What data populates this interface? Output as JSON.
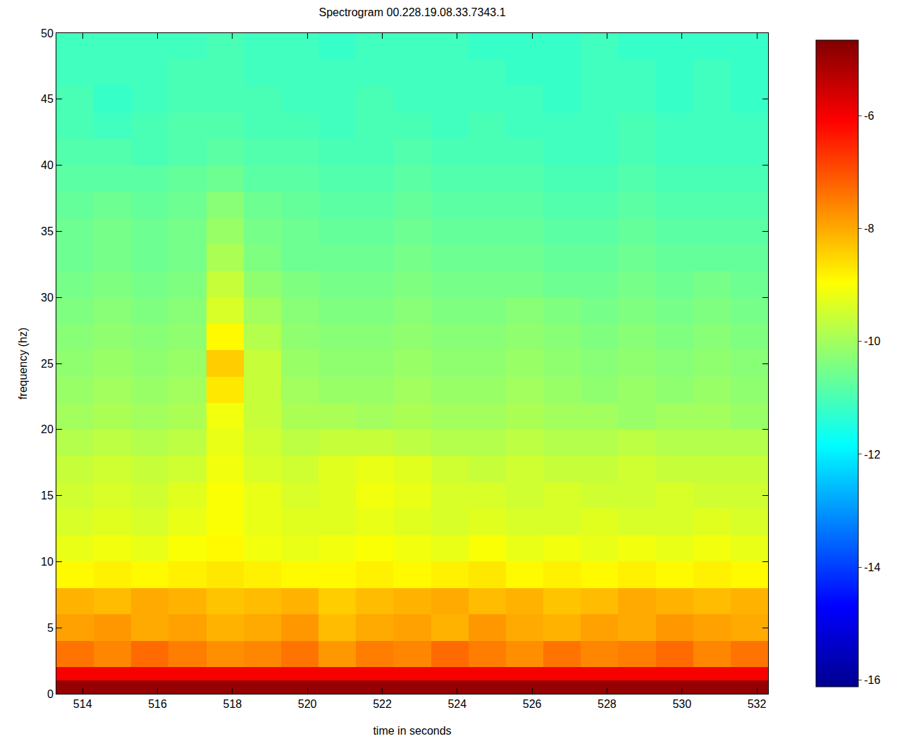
{
  "chart_data": {
    "type": "heatmap",
    "title": "Spectrogram 00.228.19.08.33.7343.1",
    "x_label": "time in seconds",
    "y_label": "frequency (hz)",
    "x_edges": [
      513.3,
      514.3,
      515.3,
      516.3,
      517.3,
      518.3,
      519.3,
      520.3,
      521.3,
      522.3,
      523.3,
      524.3,
      525.3,
      526.3,
      527.3,
      528.3,
      529.3,
      530.3,
      531.3,
      532.3
    ],
    "y_edges": [
      0,
      1,
      2,
      4,
      6,
      8,
      10,
      12,
      14,
      16,
      18,
      20,
      22,
      24,
      26,
      28,
      30,
      32,
      34,
      36,
      38,
      40,
      42,
      44,
      46,
      48,
      50
    ],
    "z": [
      [
        -4.9,
        -4.9,
        -4.9,
        -4.9,
        -4.9,
        -4.9,
        -4.9,
        -4.9,
        -4.9,
        -4.9,
        -4.9,
        -4.9,
        -4.9,
        -4.9,
        -4.9,
        -4.9,
        -4.9,
        -4.9,
        -4.9
      ],
      [
        -6.0,
        -6.0,
        -6.0,
        -6.0,
        -6.0,
        -6.0,
        -6.0,
        -6.0,
        -6.0,
        -6.0,
        -6.0,
        -6.0,
        -6.0,
        -6.0,
        -6.0,
        -6.0,
        -6.0,
        -6.0,
        -6.0
      ],
      [
        -7.4,
        -7.6,
        -7.3,
        -7.5,
        -7.7,
        -7.6,
        -7.4,
        -7.8,
        -7.5,
        -7.6,
        -7.3,
        -7.5,
        -7.7,
        -7.4,
        -7.6,
        -7.5,
        -7.3,
        -7.6,
        -7.4
      ],
      [
        -7.9,
        -7.8,
        -8.0,
        -7.9,
        -8.1,
        -8.0,
        -7.8,
        -8.2,
        -8.0,
        -7.9,
        -8.1,
        -7.8,
        -8.0,
        -8.1,
        -7.9,
        -8.0,
        -7.8,
        -7.9,
        -8.0
      ],
      [
        -8.1,
        -8.2,
        -8.0,
        -8.1,
        -8.3,
        -8.2,
        -8.1,
        -8.4,
        -8.2,
        -8.1,
        -8.0,
        -8.2,
        -8.1,
        -8.3,
        -8.2,
        -8.0,
        -8.1,
        -8.2,
        -8.1
      ],
      [
        -8.9,
        -8.8,
        -8.9,
        -8.8,
        -8.7,
        -8.8,
        -8.9,
        -8.9,
        -8.8,
        -8.9,
        -8.8,
        -8.7,
        -8.9,
        -8.8,
        -8.9,
        -8.8,
        -8.9,
        -8.8,
        -8.9
      ],
      [
        -9.2,
        -9.1,
        -9.2,
        -9.0,
        -8.9,
        -9.1,
        -9.2,
        -9.1,
        -9.0,
        -9.1,
        -9.2,
        -9.0,
        -9.2,
        -9.1,
        -9.2,
        -9.1,
        -9.2,
        -9.1,
        -9.2
      ],
      [
        -9.4,
        -9.3,
        -9.4,
        -9.2,
        -9.0,
        -9.2,
        -9.3,
        -9.3,
        -9.2,
        -9.3,
        -9.4,
        -9.3,
        -9.4,
        -9.4,
        -9.3,
        -9.4,
        -9.4,
        -9.3,
        -9.4
      ],
      [
        -9.5,
        -9.4,
        -9.5,
        -9.3,
        -9.0,
        -9.2,
        -9.4,
        -9.3,
        -9.1,
        -9.2,
        -9.4,
        -9.4,
        -9.5,
        -9.4,
        -9.5,
        -9.5,
        -9.4,
        -9.5,
        -9.5
      ],
      [
        -9.6,
        -9.5,
        -9.6,
        -9.5,
        -9.1,
        -9.4,
        -9.5,
        -9.3,
        -9.2,
        -9.3,
        -9.5,
        -9.6,
        -9.5,
        -9.6,
        -9.6,
        -9.5,
        -9.6,
        -9.6,
        -9.6
      ],
      [
        -9.8,
        -9.7,
        -9.8,
        -9.7,
        -9.2,
        -9.5,
        -9.7,
        -9.6,
        -9.6,
        -9.7,
        -9.8,
        -9.8,
        -9.7,
        -9.8,
        -9.8,
        -9.7,
        -9.8,
        -9.8,
        -9.8
      ],
      [
        -10.0,
        -9.9,
        -10.0,
        -9.9,
        -9.1,
        -9.6,
        -9.9,
        -9.9,
        -10.0,
        -9.9,
        -10.0,
        -10.0,
        -9.9,
        -10.0,
        -10.0,
        -10.1,
        -10.0,
        -10.0,
        -10.1
      ],
      [
        -10.1,
        -10.0,
        -10.1,
        -10.0,
        -8.7,
        -9.6,
        -10.0,
        -10.1,
        -10.1,
        -10.0,
        -10.1,
        -10.1,
        -10.0,
        -10.1,
        -10.2,
        -10.1,
        -10.2,
        -10.1,
        -10.2
      ],
      [
        -10.2,
        -10.1,
        -10.2,
        -10.1,
        -8.4,
        -9.6,
        -10.1,
        -10.2,
        -10.2,
        -10.1,
        -10.2,
        -10.2,
        -10.1,
        -10.2,
        -10.3,
        -10.2,
        -10.3,
        -10.2,
        -10.3
      ],
      [
        -10.3,
        -10.2,
        -10.3,
        -10.2,
        -8.9,
        -9.8,
        -10.2,
        -10.3,
        -10.3,
        -10.2,
        -10.3,
        -10.3,
        -10.2,
        -10.3,
        -10.4,
        -10.3,
        -10.4,
        -10.3,
        -10.4
      ],
      [
        -10.4,
        -10.3,
        -10.4,
        -10.3,
        -9.4,
        -10.0,
        -10.3,
        -10.4,
        -10.4,
        -10.3,
        -10.4,
        -10.4,
        -10.3,
        -10.4,
        -10.5,
        -10.4,
        -10.5,
        -10.4,
        -10.5
      ],
      [
        -10.5,
        -10.4,
        -10.5,
        -10.4,
        -9.6,
        -10.2,
        -10.4,
        -10.5,
        -10.5,
        -10.4,
        -10.5,
        -10.5,
        -10.5,
        -10.6,
        -10.6,
        -10.5,
        -10.6,
        -10.5,
        -10.6
      ],
      [
        -10.6,
        -10.5,
        -10.6,
        -10.5,
        -9.9,
        -10.4,
        -10.6,
        -10.6,
        -10.6,
        -10.5,
        -10.6,
        -10.6,
        -10.6,
        -10.7,
        -10.7,
        -10.6,
        -10.7,
        -10.7,
        -10.7
      ],
      [
        -10.6,
        -10.5,
        -10.6,
        -10.5,
        -10.1,
        -10.5,
        -10.6,
        -10.7,
        -10.7,
        -10.6,
        -10.7,
        -10.7,
        -10.7,
        -10.8,
        -10.8,
        -10.7,
        -10.8,
        -10.8,
        -10.8
      ],
      [
        -10.7,
        -10.6,
        -10.7,
        -10.6,
        -10.3,
        -10.6,
        -10.7,
        -10.8,
        -10.8,
        -10.7,
        -10.8,
        -10.8,
        -10.8,
        -10.9,
        -10.9,
        -10.8,
        -10.9,
        -10.9,
        -10.9
      ],
      [
        -10.8,
        -10.8,
        -10.8,
        -10.7,
        -10.6,
        -10.8,
        -10.8,
        -10.9,
        -10.9,
        -10.8,
        -10.9,
        -10.9,
        -10.9,
        -11.0,
        -11.0,
        -10.9,
        -11.0,
        -11.0,
        -11.0
      ],
      [
        -10.9,
        -10.9,
        -11.0,
        -10.9,
        -10.8,
        -10.9,
        -10.9,
        -11.0,
        -11.0,
        -10.9,
        -11.0,
        -11.0,
        -11.0,
        -11.1,
        -11.1,
        -11.0,
        -11.1,
        -11.1,
        -11.1
      ],
      [
        -11.0,
        -11.1,
        -11.0,
        -10.9,
        -10.9,
        -11.0,
        -11.0,
        -11.1,
        -11.0,
        -11.0,
        -11.1,
        -11.0,
        -11.1,
        -11.1,
        -11.1,
        -11.0,
        -11.1,
        -11.1,
        -11.1
      ],
      [
        -11.0,
        -11.2,
        -11.1,
        -11.0,
        -11.0,
        -11.0,
        -11.1,
        -11.1,
        -11.0,
        -11.1,
        -11.1,
        -11.1,
        -11.1,
        -11.2,
        -11.1,
        -11.1,
        -11.2,
        -11.1,
        -11.2
      ],
      [
        -11.1,
        -11.1,
        -11.1,
        -11.0,
        -11.0,
        -11.1,
        -11.1,
        -11.1,
        -11.1,
        -11.1,
        -11.1,
        -11.1,
        -11.2,
        -11.2,
        -11.1,
        -11.1,
        -11.2,
        -11.1,
        -11.2
      ],
      [
        -11.1,
        -11.1,
        -11.1,
        -11.1,
        -11.0,
        -11.1,
        -11.1,
        -11.2,
        -11.1,
        -11.1,
        -11.1,
        -11.2,
        -11.2,
        -11.2,
        -11.1,
        -11.2,
        -11.2,
        -11.2,
        -11.2
      ]
    ],
    "xlim": [
      513.3,
      532.3
    ],
    "ylim": [
      0,
      50
    ],
    "xticks": [
      514,
      516,
      518,
      520,
      522,
      524,
      526,
      528,
      530,
      532
    ],
    "yticks": [
      0,
      5,
      10,
      15,
      20,
      25,
      30,
      35,
      40,
      45,
      50
    ],
    "zlim": [
      -16.12,
      -4.66
    ],
    "zticks": [
      -6,
      -8,
      -10,
      -12,
      -14,
      -16
    ],
    "grid": false
  }
}
